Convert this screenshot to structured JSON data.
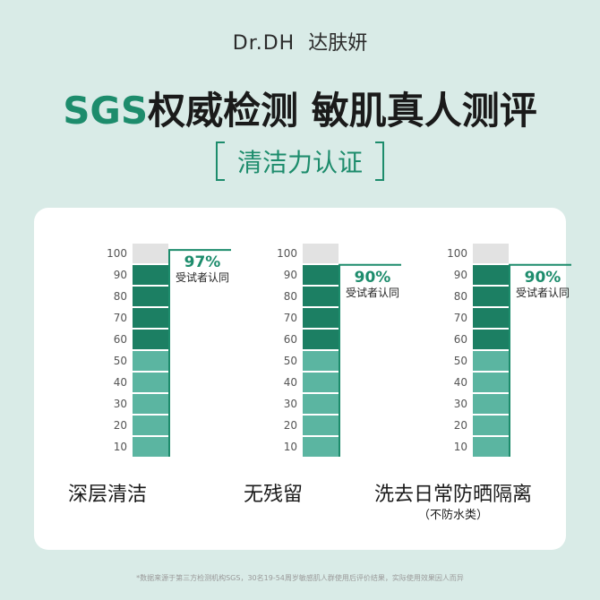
{
  "logo": {
    "brand": "Dr.DH",
    "cn": "达肤妍"
  },
  "headline": {
    "sgs": "SGS",
    "rest": "权威检测  敏肌真人测评"
  },
  "badge": "清洁力认证",
  "chart_data": [
    {
      "type": "bar",
      "title": "深层清洁",
      "subtitle": "",
      "value": 97,
      "value_label": "97%",
      "note": "受试者认同",
      "ylim": [
        0,
        100
      ],
      "ticks": [
        100,
        90,
        80,
        70,
        60,
        50,
        40,
        30,
        20,
        10
      ]
    },
    {
      "type": "bar",
      "title": "无残留",
      "subtitle": "",
      "value": 90,
      "value_label": "90%",
      "note": "受试者认同",
      "ylim": [
        0,
        100
      ],
      "ticks": [
        100,
        90,
        80,
        70,
        60,
        50,
        40,
        30,
        20,
        10
      ]
    },
    {
      "type": "bar",
      "title": "洗去日常防晒隔离",
      "subtitle": "（不防水类）",
      "value": 90,
      "value_label": "90%",
      "note": "受试者认同",
      "ylim": [
        0,
        100
      ],
      "ticks": [
        100,
        90,
        80,
        70,
        60,
        50,
        40,
        30,
        20,
        10
      ]
    }
  ],
  "footer": "*数据来源于第三方检测机构SGS，30名19-54周岁敏感肌人群使用后评价结果，实际使用效果因人而异",
  "colors": {
    "dark": "#1c7f63",
    "light": "#5bb5a1",
    "empty": "#e2e2e2",
    "accent": "#1d8c6c"
  }
}
